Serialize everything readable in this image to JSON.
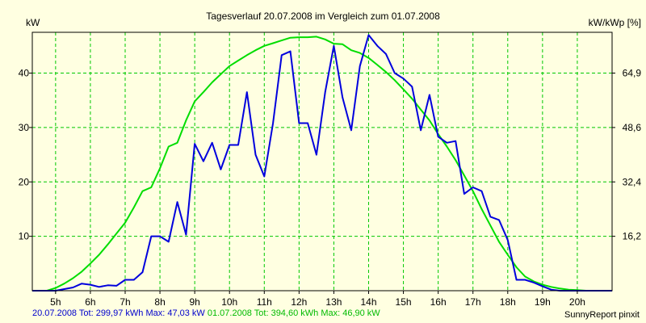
{
  "chart_data": {
    "type": "line",
    "title": "Tagesverlauf 20.07.2008 im Vergleich zum 01.07.2008",
    "ylabel_left": "kW",
    "ylabel_right": "kW/kWp [%]",
    "x_ticks": [
      {
        "value": 5,
        "label": "5h"
      },
      {
        "value": 6,
        "label": "6h"
      },
      {
        "value": 7,
        "label": "7h"
      },
      {
        "value": 8,
        "label": "8h"
      },
      {
        "value": 9,
        "label": "9h"
      },
      {
        "value": 10,
        "label": "10h"
      },
      {
        "value": 11,
        "label": "11h"
      },
      {
        "value": 12,
        "label": "12h"
      },
      {
        "value": 13,
        "label": "13h"
      },
      {
        "value": 14,
        "label": "14h"
      },
      {
        "value": 15,
        "label": "15h"
      },
      {
        "value": 16,
        "label": "16h"
      },
      {
        "value": 17,
        "label": "17h"
      },
      {
        "value": 18,
        "label": "18h"
      },
      {
        "value": 19,
        "label": "19h"
      },
      {
        "value": 20,
        "label": "20h"
      }
    ],
    "xlim": [
      4.33,
      21.0
    ],
    "ylim": [
      0,
      47.5
    ],
    "y_ticks_left": [
      {
        "value": 10,
        "label": "10"
      },
      {
        "value": 20,
        "label": "20"
      },
      {
        "value": 30,
        "label": "30"
      },
      {
        "value": 40,
        "label": "40"
      }
    ],
    "y_ticks_right": [
      {
        "value": 10,
        "label": "16,2"
      },
      {
        "value": 20,
        "label": "32,4"
      },
      {
        "value": 30,
        "label": "48,6"
      },
      {
        "value": 40,
        "label": "64,9"
      }
    ],
    "grid": true,
    "series": [
      {
        "name": "20.07.2008",
        "color": "#0000dd",
        "x": [
          4.33,
          4.75,
          5.0,
          5.25,
          5.5,
          5.75,
          6.0,
          6.25,
          6.5,
          6.75,
          7.0,
          7.25,
          7.5,
          7.75,
          8.0,
          8.25,
          8.5,
          8.75,
          9.0,
          9.25,
          9.5,
          9.75,
          10.0,
          10.25,
          10.5,
          10.75,
          11.0,
          11.25,
          11.5,
          11.75,
          12.0,
          12.25,
          12.5,
          12.75,
          13.0,
          13.25,
          13.5,
          13.75,
          14.0,
          14.25,
          14.5,
          14.75,
          15.0,
          15.25,
          15.5,
          15.75,
          16.0,
          16.25,
          16.5,
          16.75,
          17.0,
          17.25,
          17.5,
          17.75,
          18.0,
          18.25,
          18.5,
          18.75,
          19.0,
          19.25,
          19.5,
          20.0,
          20.5,
          21.0
        ],
        "y": [
          0,
          0,
          0,
          0.3,
          0.6,
          1.3,
          1.1,
          0.7,
          1.0,
          0.9,
          2.0,
          2.0,
          3.4,
          10.0,
          10.0,
          9.0,
          16.3,
          10.3,
          27.0,
          23.8,
          27.2,
          22.3,
          26.8,
          26.8,
          36.5,
          25.0,
          21.0,
          30.8,
          43.3,
          44.0,
          30.8,
          30.8,
          25.0,
          36.5,
          45.0,
          35.5,
          29.5,
          41.3,
          47.0,
          45.0,
          43.5,
          40.0,
          39.0,
          37.5,
          29.5,
          36.0,
          28.3,
          27.2,
          27.5,
          17.8,
          19.0,
          18.3,
          13.6,
          13.0,
          9.3,
          2.0,
          2.0,
          1.5,
          0.8,
          0.2,
          0,
          0,
          0,
          0
        ]
      },
      {
        "name": "01.07.2008",
        "color": "#00dd00",
        "x": [
          4.33,
          4.75,
          5.0,
          5.25,
          5.5,
          5.75,
          6.0,
          6.25,
          6.5,
          6.75,
          7.0,
          7.25,
          7.5,
          7.75,
          8.0,
          8.25,
          8.5,
          8.75,
          9.0,
          9.25,
          9.5,
          9.75,
          10.0,
          10.25,
          10.5,
          10.75,
          11.0,
          11.25,
          11.5,
          11.75,
          12.0,
          12.25,
          12.5,
          12.75,
          13.0,
          13.25,
          13.5,
          13.75,
          14.0,
          14.25,
          14.5,
          14.75,
          15.0,
          15.25,
          15.5,
          15.75,
          16.0,
          16.25,
          16.5,
          16.75,
          17.0,
          17.25,
          17.5,
          17.75,
          18.0,
          18.25,
          18.5,
          18.75,
          19.0,
          19.25,
          19.5,
          19.75,
          20.0,
          20.25,
          20.5,
          21.0
        ],
        "y": [
          0,
          0,
          0.5,
          1.3,
          2.3,
          3.5,
          5.0,
          6.6,
          8.5,
          10.5,
          12.5,
          15.3,
          18.3,
          19.0,
          22.5,
          26.5,
          27.2,
          31.3,
          34.8,
          36.5,
          38.3,
          39.8,
          41.3,
          42.3,
          43.3,
          44.2,
          45.0,
          45.5,
          46.0,
          46.5,
          46.6,
          46.6,
          46.7,
          46.2,
          45.4,
          45.3,
          44.2,
          43.7,
          42.8,
          41.5,
          40.2,
          38.7,
          37.0,
          35.3,
          33.3,
          31.3,
          28.8,
          26.5,
          24.0,
          21.2,
          18.3,
          15.0,
          12.0,
          9.0,
          6.6,
          4.3,
          2.6,
          1.7,
          1.1,
          0.7,
          0.4,
          0.2,
          0.1,
          0,
          0,
          0
        ]
      }
    ]
  },
  "footer": {
    "series1_text": "20.07.2008 Tot: 299,97 kWh Max: 47,03 kW",
    "series2_text": "01.07.2008 Tot: 394,60 kWh Max: 46,90 kW",
    "credit": "SunnyReport pinxit"
  }
}
